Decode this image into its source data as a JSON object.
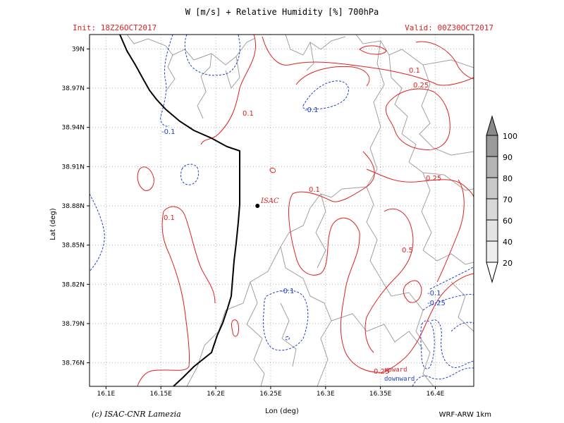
{
  "title": "W [m/s] + Relative Humidity [%] 700hPa",
  "init_label": "Init: 18Z26OCT2017",
  "valid_label": "Valid: 00Z30OCT2017",
  "x_axis": {
    "label": "Lon (deg)",
    "ticks": [
      "16.1E",
      "16.15E",
      "16.2E",
      "16.25E",
      "16.3E",
      "16.35E",
      "16.4E"
    ],
    "values": [
      16.1,
      16.15,
      16.2,
      16.25,
      16.3,
      16.35,
      16.4
    ],
    "range": [
      16.085,
      16.435
    ]
  },
  "y_axis": {
    "label": "Lat (deg)",
    "ticks": [
      "39N",
      "38.97N",
      "38.94N",
      "38.91N",
      "38.88N",
      "38.85N",
      "38.82N",
      "38.79N",
      "38.76N"
    ],
    "values": [
      39.0,
      38.97,
      38.94,
      38.91,
      38.88,
      38.85,
      38.82,
      38.79,
      38.76
    ],
    "range": [
      38.742,
      39.011
    ]
  },
  "station": {
    "name": "ISAC",
    "lon": 16.238,
    "lat": 38.88
  },
  "contour_labels": {
    "red": [
      "0.1",
      "0.1",
      "0.1",
      "0.1",
      "0.25",
      "0.25",
      "0.5",
      "0.25"
    ],
    "blue": [
      "-0.1",
      "-0.1",
      "-0.1",
      "-0.1",
      "-0.25"
    ]
  },
  "legend": {
    "upward": "upward",
    "downward": "downward"
  },
  "colorbar": {
    "levels": [
      "100",
      "90",
      "80",
      "70",
      "60",
      "40",
      "20"
    ]
  },
  "credit": "(c) ISAC-CNR Lamezia",
  "model": "WRF-ARW 1km",
  "colors": {
    "upward": "#e02020",
    "downward": "#2040d0",
    "coast": "#000000",
    "admin": "#a0a0a0",
    "grid": "#b0b0b0"
  }
}
